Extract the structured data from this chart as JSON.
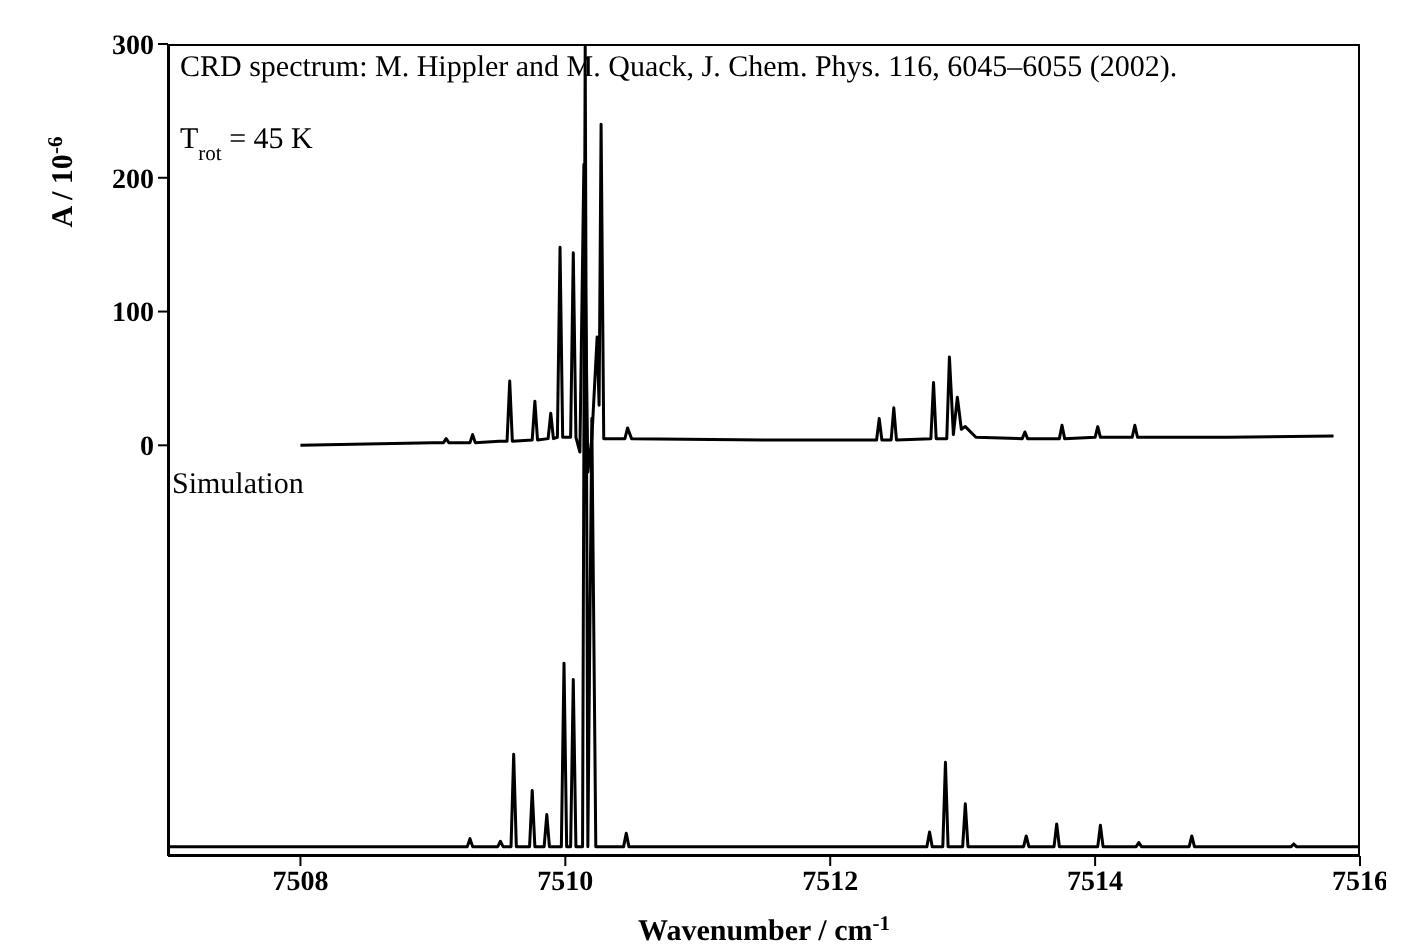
{
  "chart_data": {
    "type": "line",
    "xlabel": "Wavenumber / cm$^{-1}$",
    "ylabel": "A / 10$^{-6}$",
    "annotations": [
      "CRD spectrum: M. Hippler and M. Quack, J. Chem. Phys. 116, 6045–6055 (2002).",
      "T$_{rot}$ = 45 K",
      "Simulation"
    ],
    "xlim": [
      7507,
      7516
    ],
    "xticks": [
      7508,
      7510,
      7512,
      7514,
      7516
    ],
    "ylim": [
      -307,
      300
    ],
    "yticks": [
      0,
      100,
      200,
      300
    ],
    "grid": false,
    "marker": "none",
    "line_style": "solid",
    "series": [
      {
        "color": "#000000",
        "x": [
          7508.0,
          7509.0,
          7509.08,
          7509.1,
          7509.12,
          7509.28,
          7509.3,
          7509.32,
          7509.5,
          7509.56,
          7509.58,
          7509.6,
          7509.75,
          7509.77,
          7509.79,
          7509.87,
          7509.89,
          7509.91,
          7509.94,
          7509.96,
          7509.98,
          7510.04,
          7510.06,
          7510.08,
          7510.11,
          7510.14,
          7510.17,
          7510.2,
          7510.24,
          7510.255,
          7510.27,
          7510.29,
          7510.45,
          7510.47,
          7510.5,
          7511.5,
          7512.35,
          7512.37,
          7512.39,
          7512.46,
          7512.48,
          7512.5,
          7512.76,
          7512.78,
          7512.8,
          7512.88,
          7512.9,
          7512.93,
          7512.96,
          7512.99,
          7513.02,
          7513.1,
          7513.45,
          7513.47,
          7513.49,
          7513.73,
          7513.75,
          7513.77,
          7514.0,
          7514.02,
          7514.04,
          7514.28,
          7514.3,
          7514.32,
          7515.0,
          7515.8
        ],
        "values": [
          0,
          2,
          2,
          5,
          2,
          2,
          8,
          2,
          3,
          3,
          48,
          3,
          4,
          33,
          4,
          5,
          24,
          5,
          6,
          148,
          6,
          6,
          144,
          6,
          -5,
          210,
          -20,
          5,
          81,
          30,
          240,
          5,
          5,
          13,
          5,
          4,
          4,
          20,
          4,
          4,
          28,
          4,
          5,
          47,
          5,
          5,
          66,
          8,
          36,
          12,
          14,
          6,
          5,
          10,
          5,
          5,
          15,
          5,
          6,
          14,
          6,
          6,
          15,
          6,
          6,
          7
        ]
      },
      {
        "color": "#000000",
        "x": [
          7507.0,
          7509.26,
          7509.28,
          7509.3,
          7509.49,
          7509.51,
          7509.53,
          7509.59,
          7509.61,
          7509.63,
          7509.73,
          7509.75,
          7509.77,
          7509.84,
          7509.86,
          7509.88,
          7509.97,
          7509.99,
          7510.01,
          7510.04,
          7510.06,
          7510.08,
          7510.13,
          7510.15,
          7510.17,
          7510.2,
          7510.23,
          7510.44,
          7510.46,
          7510.48,
          7512.73,
          7512.75,
          7512.77,
          7512.85,
          7512.87,
          7512.89,
          7513.0,
          7513.02,
          7513.04,
          7513.46,
          7513.48,
          7513.5,
          7513.69,
          7513.71,
          7513.73,
          7514.02,
          7514.04,
          7514.06,
          7514.31,
          7514.33,
          7514.35,
          7514.71,
          7514.73,
          7514.75,
          7515.48,
          7515.5,
          7515.52,
          7516.0
        ],
        "values": [
          -300,
          -300,
          -294,
          -300,
          -300,
          -296,
          -300,
          -300,
          -231,
          -300,
          -300,
          -258,
          -300,
          -300,
          -276,
          -300,
          -300,
          -163,
          -300,
          -300,
          -175,
          -300,
          -300,
          300,
          -300,
          20,
          -300,
          -300,
          -290,
          -300,
          -300,
          -289,
          -300,
          -300,
          -237,
          -300,
          -300,
          -268,
          -300,
          -300,
          -292,
          -300,
          -300,
          -283,
          -300,
          -300,
          -284,
          -300,
          -300,
          -297,
          -300,
          -300,
          -292,
          -300,
          -300,
          -298,
          -300,
          -300
        ]
      }
    ]
  }
}
